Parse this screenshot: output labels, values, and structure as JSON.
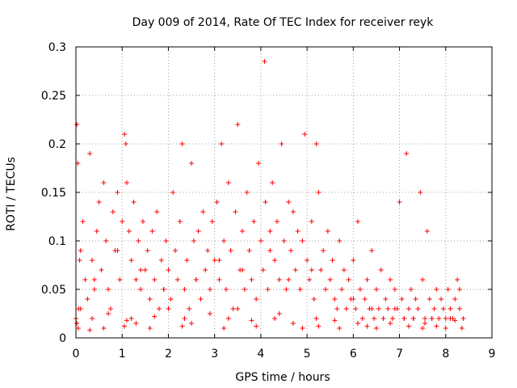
{
  "chart_data": {
    "type": "scatter",
    "title": "Day 009 of 2014, Rate Of TEC Index for receiver reyk",
    "xlabel": "GPS time / hours",
    "ylabel": "ROTI / TECUs",
    "xlim": [
      0,
      9
    ],
    "ylim": [
      0,
      0.3
    ],
    "x_ticks": [
      "0",
      "1",
      "2",
      "3",
      "4",
      "5",
      "6",
      "7",
      "8",
      "9"
    ],
    "y_ticks": [
      "0",
      "0.05",
      "0.1",
      "0.15",
      "0.2",
      "0.25",
      "0.3"
    ],
    "grid": true,
    "marker": "plus",
    "series_color": "#ff0000",
    "series": [
      {
        "name": "ROTI",
        "x": [
          0.0,
          0.02,
          0.04,
          0.06,
          0.1,
          0.15,
          0.2,
          0.25,
          0.3,
          0.35,
          0.4,
          0.45,
          0.5,
          0.55,
          0.6,
          0.65,
          0.7,
          0.75,
          0.8,
          0.85,
          0.9,
          0.95,
          1.0,
          1.05,
          1.08,
          1.1,
          1.15,
          1.2,
          1.25,
          1.3,
          1.35,
          1.4,
          1.45,
          1.5,
          1.55,
          1.6,
          1.65,
          1.7,
          1.75,
          1.8,
          1.85,
          1.9,
          1.95,
          2.0,
          2.05,
          2.1,
          2.15,
          2.2,
          2.25,
          2.3,
          2.35,
          2.4,
          2.45,
          2.5,
          2.55,
          2.6,
          2.65,
          2.7,
          2.75,
          2.8,
          2.85,
          2.9,
          2.95,
          3.0,
          3.05,
          3.1,
          3.15,
          3.2,
          3.25,
          3.3,
          3.35,
          3.4,
          3.45,
          3.5,
          3.55,
          3.6,
          3.65,
          3.7,
          3.75,
          3.8,
          3.85,
          3.9,
          3.95,
          4.0,
          4.05,
          4.08,
          4.1,
          4.15,
          4.2,
          4.25,
          4.3,
          4.35,
          4.4,
          4.45,
          4.5,
          4.55,
          4.6,
          4.65,
          4.7,
          4.75,
          4.8,
          4.85,
          4.9,
          4.95,
          5.0,
          5.05,
          5.1,
          5.15,
          5.2,
          5.25,
          5.3,
          5.35,
          5.4,
          5.45,
          5.5,
          5.55,
          5.6,
          5.65,
          5.7,
          5.75,
          5.8,
          5.85,
          5.9,
          5.95,
          6.0,
          6.05,
          6.1,
          6.15,
          6.2,
          6.25,
          6.3,
          6.35,
          6.4,
          6.45,
          6.5,
          6.55,
          6.6,
          6.65,
          6.7,
          6.75,
          6.8,
          6.85,
          6.9,
          6.95,
          7.0,
          7.05,
          7.1,
          7.15,
          7.2,
          7.25,
          7.3,
          7.35,
          7.4,
          7.45,
          7.5,
          7.55,
          7.6,
          7.65,
          7.7,
          7.75,
          7.8,
          7.85,
          7.9,
          7.95,
          8.0,
          8.05,
          8.1,
          8.15,
          8.2,
          8.25,
          8.3,
          8.35,
          8.38,
          0.02,
          0.05,
          0.1,
          0.3,
          0.35,
          0.6,
          0.7,
          1.05,
          1.1,
          1.2,
          1.3,
          1.6,
          1.7,
          2.0,
          2.3,
          2.35,
          2.5,
          2.9,
          3.2,
          3.3,
          3.5,
          3.8,
          3.9,
          4.3,
          4.4,
          4.7,
          4.9,
          5.2,
          5.25,
          5.6,
          5.7,
          6.1,
          6.3,
          6.5,
          6.8,
          7.1,
          7.2,
          7.5,
          7.55,
          7.8,
          8.0,
          8.2,
          0.08,
          0.4,
          0.9,
          1.4,
          1.9,
          2.6,
          3.1,
          3.6,
          4.2,
          4.6,
          5.1,
          5.4,
          6.0,
          6.4,
          6.9,
          7.3,
          7.7,
          8.1,
          8.3
        ],
        "y": [
          0.02,
          0.22,
          0.18,
          0.03,
          0.09,
          0.12,
          0.06,
          0.04,
          0.19,
          0.08,
          0.05,
          0.11,
          0.14,
          0.07,
          0.16,
          0.1,
          0.05,
          0.03,
          0.13,
          0.09,
          0.15,
          0.06,
          0.12,
          0.21,
          0.2,
          0.16,
          0.11,
          0.08,
          0.14,
          0.06,
          0.1,
          0.05,
          0.12,
          0.07,
          0.09,
          0.04,
          0.11,
          0.06,
          0.13,
          0.03,
          0.08,
          0.05,
          0.1,
          0.07,
          0.04,
          0.15,
          0.09,
          0.06,
          0.12,
          0.2,
          0.05,
          0.08,
          0.03,
          0.18,
          0.1,
          0.06,
          0.11,
          0.04,
          0.13,
          0.07,
          0.09,
          0.05,
          0.12,
          0.08,
          0.14,
          0.06,
          0.2,
          0.1,
          0.05,
          0.16,
          0.09,
          0.03,
          0.13,
          0.22,
          0.07,
          0.11,
          0.05,
          0.15,
          0.09,
          0.06,
          0.12,
          0.04,
          0.18,
          0.1,
          0.07,
          0.285,
          0.14,
          0.05,
          0.11,
          0.16,
          0.08,
          0.12,
          0.06,
          0.2,
          0.1,
          0.05,
          0.14,
          0.09,
          0.13,
          0.07,
          0.11,
          0.05,
          0.1,
          0.21,
          0.08,
          0.06,
          0.12,
          0.04,
          0.2,
          0.15,
          0.07,
          0.09,
          0.05,
          0.11,
          0.06,
          0.08,
          0.04,
          0.03,
          0.1,
          0.05,
          0.07,
          0.03,
          0.06,
          0.04,
          0.08,
          0.03,
          0.12,
          0.05,
          0.02,
          0.04,
          0.06,
          0.03,
          0.09,
          0.02,
          0.05,
          0.03,
          0.07,
          0.02,
          0.04,
          0.03,
          0.06,
          0.02,
          0.05,
          0.03,
          0.14,
          0.04,
          0.02,
          0.19,
          0.03,
          0.05,
          0.02,
          0.04,
          0.03,
          0.15,
          0.06,
          0.02,
          0.11,
          0.04,
          0.02,
          0.03,
          0.05,
          0.02,
          0.04,
          0.03,
          0.02,
          0.05,
          0.03,
          0.02,
          0.04,
          0.06,
          0.05,
          0.01,
          0.02,
          0.015,
          0.01,
          0.03,
          0.008,
          0.02,
          0.01,
          0.025,
          0.012,
          0.018,
          0.02,
          0.015,
          0.01,
          0.022,
          0.03,
          0.012,
          0.02,
          0.015,
          0.025,
          0.01,
          0.02,
          0.03,
          0.018,
          0.012,
          0.02,
          0.025,
          0.015,
          0.01,
          0.02,
          0.012,
          0.018,
          0.01,
          0.015,
          0.012,
          0.01,
          0.015,
          0.02,
          0.012,
          0.01,
          0.015,
          0.012,
          0.01,
          0.018,
          0.08,
          0.06,
          0.09,
          0.07,
          0.05,
          0.06,
          0.08,
          0.07,
          0.09,
          0.06,
          0.07,
          0.05,
          0.04,
          0.03,
          0.03,
          0.02,
          0.02,
          0.02,
          0.03
        ]
      }
    ]
  }
}
